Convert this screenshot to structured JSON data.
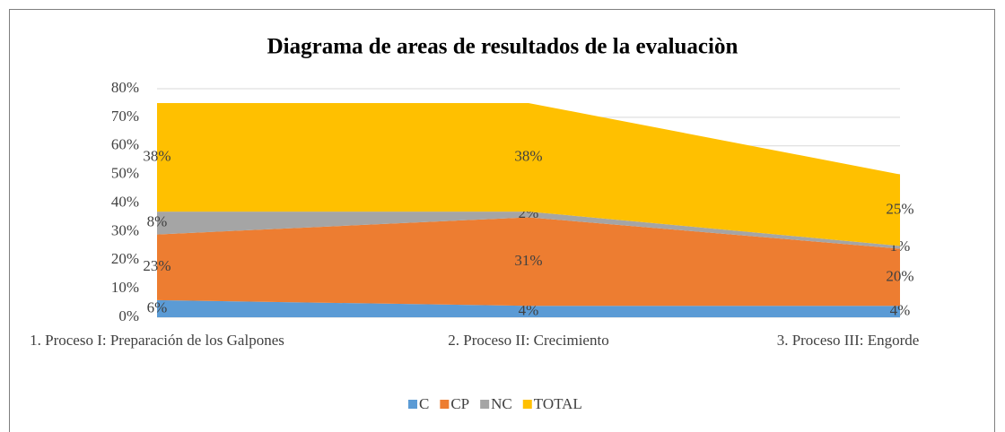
{
  "chart_data": {
    "type": "stacked-area",
    "title": "Diagrama de areas de resultados de la evaluaciòn",
    "categories": [
      "1. Proceso I: Preparación de los Galpones",
      "2. Proceso II: Crecimiento",
      "3. Proceso III: Engorde"
    ],
    "series": [
      {
        "name": "C",
        "color": "#5b9bd5",
        "values": [
          6,
          4,
          4
        ],
        "value_labels": [
          "6%",
          "4%",
          "4%"
        ]
      },
      {
        "name": "CP",
        "color": "#ed7d31",
        "values": [
          23,
          31,
          20
        ],
        "value_labels": [
          "23%",
          "31%",
          "20%"
        ]
      },
      {
        "name": "NC",
        "color": "#a5a5a5",
        "values": [
          8,
          2,
          1
        ],
        "value_labels": [
          "8%",
          "2%",
          "1%"
        ]
      },
      {
        "name": "TOTAL",
        "color": "#ffc000",
        "values": [
          38,
          38,
          25
        ],
        "value_labels": [
          "38%",
          "38%",
          "25%"
        ]
      }
    ],
    "ylim": [
      0,
      80
    ],
    "yticks": [
      {
        "value": 0,
        "label": "0%"
      },
      {
        "value": 10,
        "label": "10%"
      },
      {
        "value": 20,
        "label": "20%"
      },
      {
        "value": 30,
        "label": "30%"
      },
      {
        "value": 40,
        "label": "40%"
      },
      {
        "value": 50,
        "label": "50%"
      },
      {
        "value": 60,
        "label": "60%"
      },
      {
        "value": 70,
        "label": "70%"
      },
      {
        "value": 80,
        "label": "80%"
      }
    ],
    "grid": true,
    "legend": "bottom"
  }
}
